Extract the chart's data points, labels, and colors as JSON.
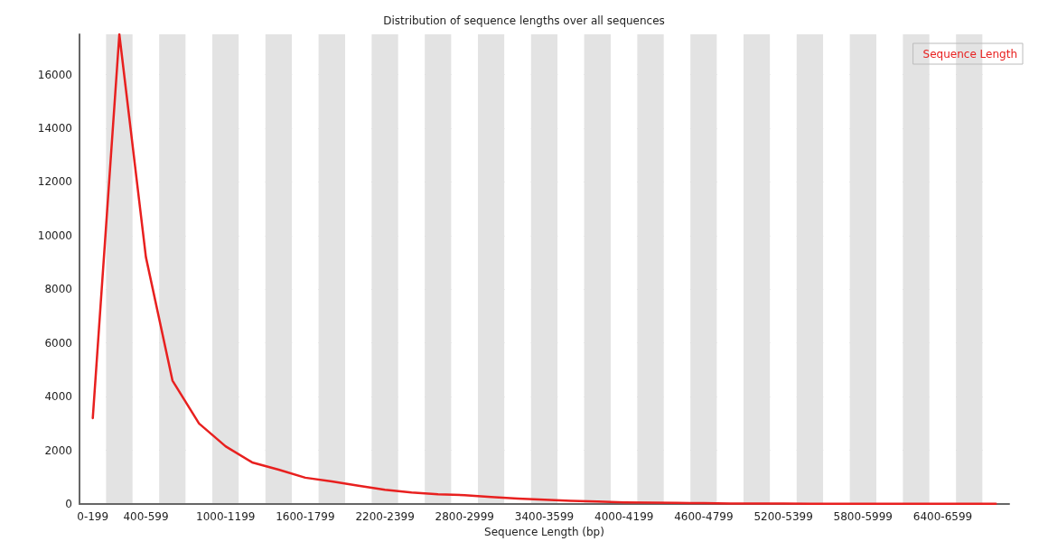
{
  "chart_data": {
    "type": "line",
    "title": "Distribution of sequence lengths over all sequences",
    "xlabel": "Sequence Length (bp)",
    "categories": [
      "0-199",
      null,
      "400-599",
      null,
      null,
      "1000-1199",
      null,
      null,
      "1600-1799",
      null,
      null,
      "2200-2399",
      null,
      null,
      "2800-2999",
      null,
      null,
      "3400-3599",
      null,
      null,
      "4000-4199",
      null,
      null,
      "4600-4799",
      null,
      null,
      "5200-5399",
      null,
      null,
      "5800-5999",
      null,
      null,
      "6400-6599",
      null,
      null
    ],
    "series": [
      {
        "name": "Sequence Length",
        "color": "#e8201f",
        "values": [
          3200,
          17500,
          9200,
          4600,
          3000,
          2150,
          1550,
          1280,
          980,
          840,
          680,
          530,
          430,
          360,
          330,
          260,
          200,
          160,
          120,
          90,
          60,
          50,
          40,
          30,
          20,
          20,
          20,
          10,
          10,
          10,
          10,
          10,
          10,
          10,
          10
        ]
      }
    ],
    "ylim": [
      0,
      17500
    ],
    "yticks": [
      0,
      2000,
      4000,
      6000,
      8000,
      10000,
      12000,
      14000,
      16000
    ],
    "grid": "y",
    "legend": "top right",
    "marker": "none",
    "line_style": "solid"
  }
}
